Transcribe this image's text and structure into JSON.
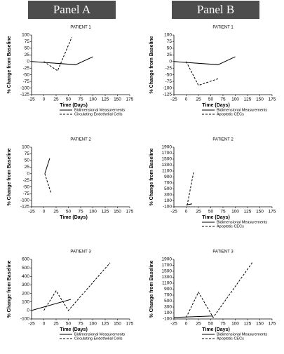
{
  "panel_titles": [
    "Panel A",
    "Panel B"
  ],
  "chart_data": [
    {
      "type": "line",
      "title": "PATIENT 1",
      "xlabel": "Time (Days)",
      "ylabel": "% Change from Baseline",
      "xlim": [
        -25,
        175
      ],
      "xticks": [
        -25,
        0,
        25,
        50,
        75,
        100,
        125,
        150,
        175
      ],
      "ylim": [
        -125,
        100
      ],
      "yticks": [
        -125,
        -100,
        -75,
        -50,
        -25,
        0,
        25,
        50,
        75,
        100
      ],
      "legend": true,
      "series": [
        {
          "name": "Bidimensional Measurements",
          "color": "#000000",
          "dash": false,
          "x": [
            -25,
            65,
            100
          ],
          "values": [
            0,
            -12,
            18
          ]
        },
        {
          "name": "Circulating Endothelial Cells",
          "color": "#000000",
          "dash": true,
          "x": [
            0,
            28,
            57
          ],
          "values": [
            0,
            -35,
            92
          ]
        }
      ]
    },
    {
      "type": "line",
      "title": "PATIENT 1",
      "xlabel": "Time (Days)",
      "ylabel": "% Change from Baseline",
      "xlim": [
        -25,
        175
      ],
      "xticks": [
        -25,
        0,
        25,
        50,
        75,
        100,
        125,
        150,
        175
      ],
      "ylim": [
        -125,
        100
      ],
      "yticks": [
        -125,
        -100,
        -75,
        -50,
        -25,
        0,
        25,
        50,
        75,
        100
      ],
      "legend": true,
      "series": [
        {
          "name": "Bidimensional Measurements",
          "color": "#000000",
          "dash": false,
          "x": [
            -25,
            65,
            100
          ],
          "values": [
            0,
            -12,
            18
          ]
        },
        {
          "name": "Apoptotic CECs",
          "color": "#000000",
          "dash": true,
          "x": [
            0,
            25,
            65
          ],
          "values": [
            0,
            -90,
            -65
          ]
        }
      ]
    },
    {
      "type": "line",
      "title": "PATIENT 2",
      "xlabel": "Time (Days)",
      "ylabel": "% Change from Baseline",
      "xlim": [
        -25,
        175
      ],
      "xticks": [
        -25,
        0,
        25,
        50,
        75,
        100,
        125,
        150,
        175
      ],
      "ylim": [
        -125,
        100
      ],
      "yticks": [
        -125,
        -100,
        -75,
        -50,
        -25,
        0,
        25,
        50,
        75,
        100
      ],
      "legend": false,
      "series": [
        {
          "name": "Bidimensional Measurements",
          "color": "#000000",
          "dash": false,
          "x": [
            2,
            12
          ],
          "values": [
            0,
            58
          ]
        },
        {
          "name": "Circulating Endothelial Cells",
          "color": "#000000",
          "dash": true,
          "x": [
            2,
            8,
            15
          ],
          "values": [
            0,
            -35,
            -75
          ]
        }
      ]
    },
    {
      "type": "line",
      "title": "PATIENT 2",
      "xlabel": "Time (Days)",
      "ylabel": "% Change from Baseline",
      "xlim": [
        -25,
        175
      ],
      "xticks": [
        -25,
        0,
        25,
        50,
        75,
        100,
        125,
        150,
        175
      ],
      "ylim": [
        -100,
        1900
      ],
      "yticks": [
        -100,
        100,
        300,
        500,
        700,
        900,
        1100,
        1300,
        1500,
        1700,
        1900
      ],
      "legend": true,
      "series": [
        {
          "name": "Bidimensional Measurements",
          "color": "#000000",
          "dash": false,
          "x": [
            0,
            12
          ],
          "values": [
            -40,
            0
          ]
        },
        {
          "name": "Apoptotic CECs",
          "color": "#000000",
          "dash": true,
          "x": [
            2,
            15
          ],
          "values": [
            -50,
            1050
          ]
        }
      ]
    },
    {
      "type": "line",
      "title": "PATIENT 3",
      "xlabel": "Time (Days)",
      "ylabel": "% Change from Baseline",
      "xlim": [
        -25,
        175
      ],
      "xticks": [
        -25,
        0,
        25,
        50,
        75,
        100,
        125,
        150,
        175
      ],
      "ylim": [
        -100,
        600
      ],
      "yticks": [
        -100,
        0,
        100,
        200,
        300,
        400,
        500,
        600
      ],
      "legend": true,
      "series": [
        {
          "name": "Bidimensional Measurements",
          "color": "#000000",
          "dash": false,
          "x": [
            -25,
            55
          ],
          "values": [
            0,
            130
          ]
        },
        {
          "name": "Circulating Endothelial Cells",
          "color": "#000000",
          "dash": true,
          "x": [
            0,
            25,
            50,
            135
          ],
          "values": [
            0,
            230,
            0,
            560
          ]
        }
      ]
    },
    {
      "type": "line",
      "title": "PATIENT 3",
      "xlabel": "Time (Days)",
      "ylabel": "% Change from Baseline",
      "xlim": [
        -25,
        175
      ],
      "xticks": [
        -25,
        0,
        25,
        50,
        75,
        100,
        125,
        150,
        175
      ],
      "ylim": [
        -100,
        1900
      ],
      "yticks": [
        -100,
        100,
        300,
        500,
        700,
        900,
        1100,
        1300,
        1500,
        1700,
        1900
      ],
      "legend": true,
      "series": [
        {
          "name": "Bidimensional Measurements",
          "color": "#000000",
          "dash": false,
          "x": [
            -25,
            55
          ],
          "values": [
            -50,
            0
          ]
        },
        {
          "name": "Apoptotic CECs",
          "color": "#000000",
          "dash": true,
          "x": [
            0,
            25,
            55,
            135
          ],
          "values": [
            -50,
            800,
            -50,
            1800
          ]
        }
      ]
    }
  ]
}
